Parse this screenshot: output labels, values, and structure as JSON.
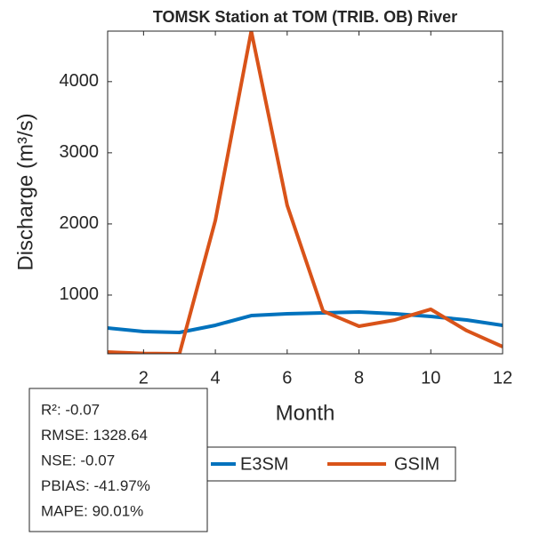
{
  "chart_data": {
    "type": "line",
    "title": "TOMSK  Station at  TOM (TRIB. OB)  River",
    "x_label": "Month",
    "y_label": "Discharge (m³/s)",
    "x": [
      1,
      2,
      3,
      4,
      5,
      6,
      7,
      8,
      9,
      10,
      11,
      12
    ],
    "series": [
      {
        "name": "E3SM",
        "color": "#0072BD",
        "values": [
          537,
          487,
          475,
          575,
          712,
          737,
          750,
          762,
          737,
          700,
          650,
          575
        ]
      },
      {
        "name": "GSIM",
        "color": "#D95319",
        "values": [
          200,
          180,
          175,
          2050,
          4710,
          2262,
          775,
          562,
          650,
          800,
          500,
          275
        ]
      }
    ],
    "xlim": [
      1,
      12
    ],
    "xticks": [
      2,
      4,
      6,
      8,
      10,
      12
    ],
    "ylim": [
      175,
      4710
    ],
    "yticks": [
      1000,
      2000,
      3000,
      4000
    ],
    "grid": false,
    "annotations": [
      "R²: -0.07",
      "RMSE: 1328.64",
      "NSE: -0.07",
      "PBIAS: -41.97%",
      "MAPE: 90.01%"
    ]
  }
}
